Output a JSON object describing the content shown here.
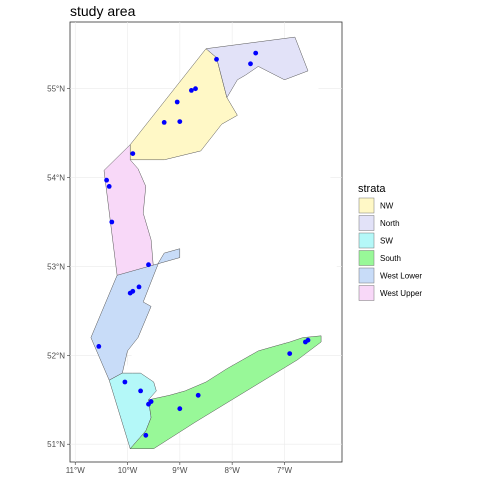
{
  "title": "study area",
  "chart_data": {
    "type": "map",
    "title": "study area",
    "x_ticks": [
      "11°W",
      "10°W",
      "9°W",
      "8°W",
      "7°W"
    ],
    "x_tick_values": [
      -11,
      -10,
      -9,
      -8,
      -7
    ],
    "y_ticks": [
      "51°N",
      "52°N",
      "53°N",
      "54°N",
      "55°N"
    ],
    "y_tick_values": [
      51,
      52,
      53,
      54,
      55
    ],
    "xlim": [
      -11.1,
      -5.9
    ],
    "ylim": [
      50.8,
      55.75
    ],
    "grid": true,
    "legend": {
      "title": "strata",
      "position": "right",
      "items": [
        {
          "label": "NW",
          "color": "#fff8c6"
        },
        {
          "label": "North",
          "color": "#e2e2f8"
        },
        {
          "label": "SW",
          "color": "#b4f8f8"
        },
        {
          "label": "South",
          "color": "#98f898"
        },
        {
          "label": "West Lower",
          "color": "#c8dcf8"
        },
        {
          "label": "West Upper",
          "color": "#f8d8f8"
        }
      ]
    },
    "strata": [
      {
        "name": "NW",
        "color": "#fff8c6",
        "polygon": [
          [
            -9.95,
            54.37
          ],
          [
            -8.5,
            55.45
          ],
          [
            -8.3,
            55.35
          ],
          [
            -8.1,
            54.9
          ],
          [
            -7.9,
            54.7
          ],
          [
            -8.2,
            54.6
          ],
          [
            -8.6,
            54.3
          ],
          [
            -9.3,
            54.2
          ],
          [
            -9.95,
            54.2
          ]
        ]
      },
      {
        "name": "North",
        "color": "#e2e2f8",
        "polygon": [
          [
            -8.5,
            55.45
          ],
          [
            -6.8,
            55.58
          ],
          [
            -6.55,
            55.2
          ],
          [
            -7.0,
            55.1
          ],
          [
            -7.5,
            55.25
          ],
          [
            -7.75,
            55.15
          ],
          [
            -7.9,
            55.1
          ],
          [
            -8.1,
            54.9
          ],
          [
            -8.3,
            55.35
          ]
        ]
      },
      {
        "name": "West Upper",
        "color": "#f8d8f8",
        "polygon": [
          [
            -9.95,
            54.37
          ],
          [
            -10.45,
            54.08
          ],
          [
            -10.2,
            52.9
          ],
          [
            -9.5,
            52.95
          ],
          [
            -9.55,
            53.3
          ],
          [
            -9.7,
            53.6
          ],
          [
            -9.65,
            53.9
          ],
          [
            -9.8,
            54.1
          ],
          [
            -9.95,
            54.2
          ]
        ]
      },
      {
        "name": "West Lower",
        "color": "#c8dcf8",
        "polygon": [
          [
            -10.2,
            52.9
          ],
          [
            -9.0,
            53.1
          ],
          [
            -9.0,
            53.2
          ],
          [
            -9.3,
            53.15
          ],
          [
            -9.4,
            53.05
          ],
          [
            -9.7,
            52.6
          ],
          [
            -9.55,
            52.55
          ],
          [
            -9.8,
            52.2
          ],
          [
            -10.0,
            52.05
          ],
          [
            -10.1,
            51.8
          ],
          [
            -10.35,
            51.72
          ],
          [
            -10.7,
            52.2
          ]
        ]
      },
      {
        "name": "SW",
        "color": "#b4f8f8",
        "polygon": [
          [
            -10.35,
            51.72
          ],
          [
            -10.1,
            51.8
          ],
          [
            -9.9,
            51.8
          ],
          [
            -9.75,
            51.8
          ],
          [
            -9.5,
            51.7
          ],
          [
            -9.45,
            51.6
          ],
          [
            -9.6,
            51.5
          ],
          [
            -9.55,
            51.3
          ],
          [
            -9.65,
            51.15
          ],
          [
            -9.95,
            50.95
          ]
        ]
      },
      {
        "name": "South",
        "color": "#98f898",
        "polygon": [
          [
            -9.95,
            50.95
          ],
          [
            -9.65,
            51.15
          ],
          [
            -9.55,
            51.3
          ],
          [
            -9.6,
            51.5
          ],
          [
            -9.2,
            51.55
          ],
          [
            -8.9,
            51.6
          ],
          [
            -8.5,
            51.7
          ],
          [
            -8.1,
            51.85
          ],
          [
            -7.8,
            51.95
          ],
          [
            -7.5,
            52.05
          ],
          [
            -7.2,
            52.1
          ],
          [
            -6.9,
            52.15
          ],
          [
            -6.65,
            52.2
          ],
          [
            -6.3,
            52.22
          ],
          [
            -6.3,
            52.15
          ],
          [
            -6.75,
            51.95
          ],
          [
            -8.7,
            51.25
          ],
          [
            -9.5,
            50.95
          ]
        ]
      }
    ],
    "stations": [
      [
        -7.55,
        55.4
      ],
      [
        -8.3,
        55.33
      ],
      [
        -7.65,
        55.28
      ],
      [
        -8.7,
        55.0
      ],
      [
        -8.78,
        54.98
      ],
      [
        -9.05,
        54.85
      ],
      [
        -9.0,
        54.63
      ],
      [
        -9.3,
        54.62
      ],
      [
        -9.9,
        54.27
      ],
      [
        -10.4,
        53.97
      ],
      [
        -10.35,
        53.9
      ],
      [
        -10.3,
        53.5
      ],
      [
        -9.6,
        53.02
      ],
      [
        -9.95,
        52.7
      ],
      [
        -9.9,
        52.72
      ],
      [
        -9.78,
        52.77
      ],
      [
        -10.55,
        52.1
      ],
      [
        -10.05,
        51.7
      ],
      [
        -9.75,
        51.6
      ],
      [
        -9.55,
        51.48
      ],
      [
        -9.6,
        51.45
      ],
      [
        -9.0,
        51.4
      ],
      [
        -8.65,
        51.55
      ],
      [
        -9.65,
        51.1
      ],
      [
        -6.9,
        52.02
      ],
      [
        -6.6,
        52.15
      ],
      [
        -6.55,
        52.17
      ]
    ]
  }
}
